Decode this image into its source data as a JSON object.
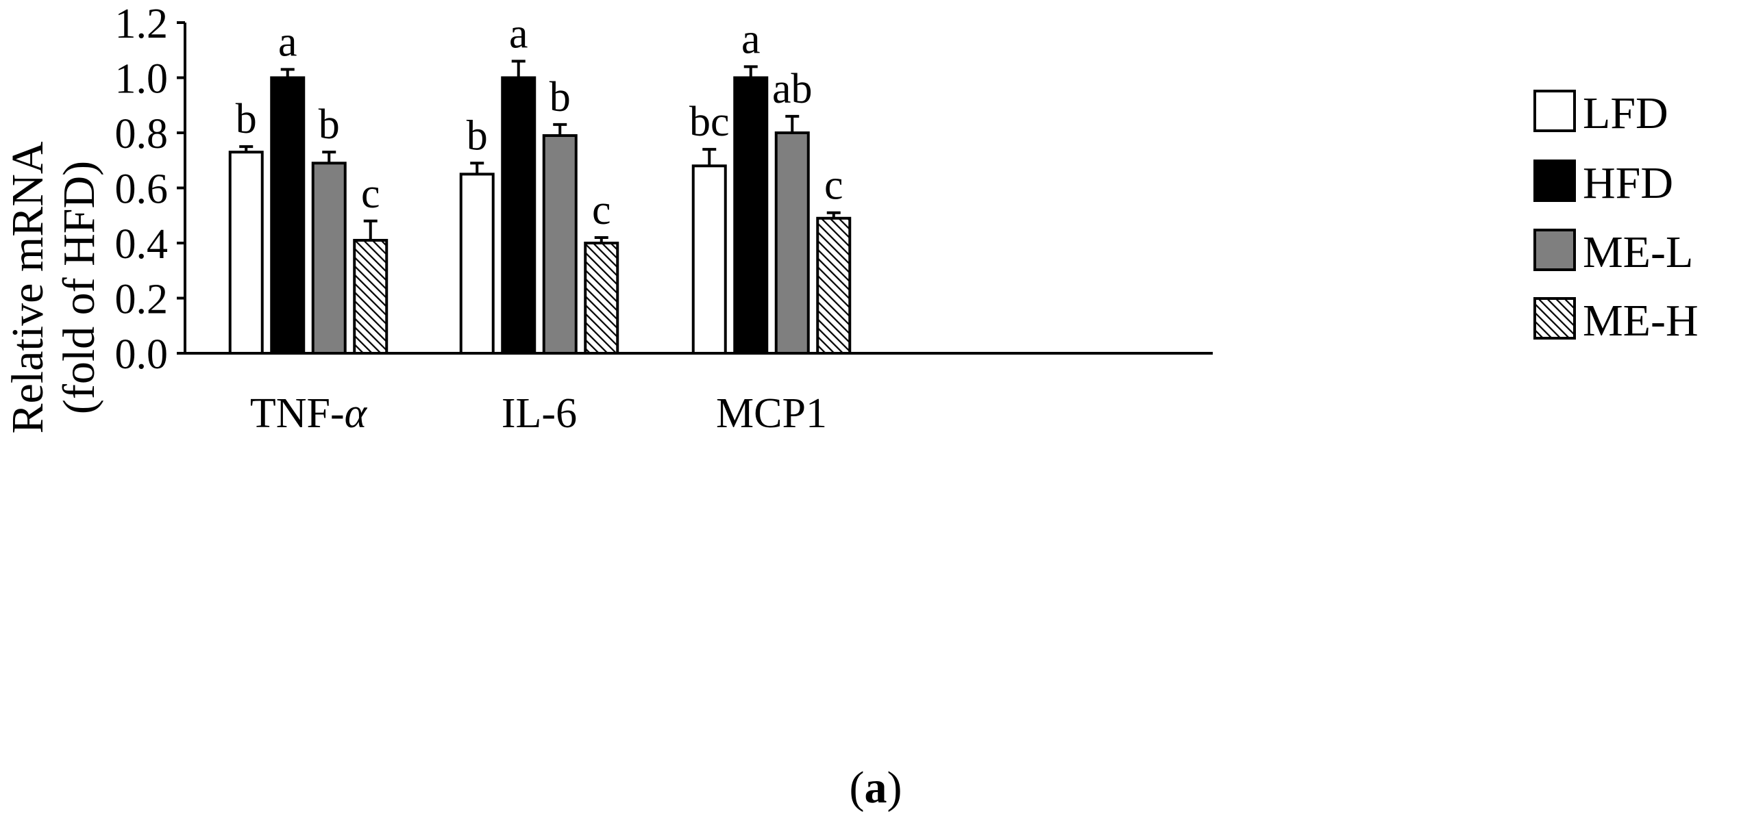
{
  "chart_data": {
    "type": "bar",
    "title": "",
    "xlabel": "",
    "ylabel_lines": [
      "Relative mRNA",
      "(fold of HFD)"
    ],
    "ylim": [
      0,
      1.2
    ],
    "y_ticks": [
      0.0,
      0.2,
      0.4,
      0.6,
      0.8,
      1.0,
      1.2
    ],
    "y_tick_labels": [
      "0.0",
      "0.2",
      "0.4",
      "0.6",
      "0.8",
      "1.0",
      "1.2"
    ],
    "categories": [
      "TNF-",
      "IL-6",
      "MCP1"
    ],
    "category_suffix": [
      "α",
      "",
      ""
    ],
    "series": [
      {
        "name": "LFD",
        "fill": "white",
        "values": [
          0.73,
          0.65,
          0.68
        ],
        "errors": [
          0.02,
          0.04,
          0.06
        ],
        "letters": [
          "b",
          "b",
          "bc"
        ]
      },
      {
        "name": "HFD",
        "fill": "black",
        "values": [
          1.0,
          1.0,
          1.0
        ],
        "errors": [
          0.03,
          0.06,
          0.04
        ],
        "letters": [
          "a",
          "a",
          "a"
        ]
      },
      {
        "name": "ME-L",
        "fill": "gray",
        "values": [
          0.69,
          0.79,
          0.8
        ],
        "errors": [
          0.04,
          0.04,
          0.06
        ],
        "letters": [
          "b",
          "b",
          "ab"
        ]
      },
      {
        "name": "ME-H",
        "fill": "hatched",
        "values": [
          0.41,
          0.4,
          0.49
        ],
        "errors": [
          0.07,
          0.02,
          0.02
        ],
        "letters": [
          "c",
          "c",
          "c"
        ]
      }
    ],
    "legend_position": "right",
    "panel_label_open": "(",
    "panel_label_letter": "a",
    "panel_label_close": ")"
  },
  "colors": {
    "white": "#ffffff",
    "black": "#000000",
    "gray": "#7f7f7f",
    "hatch_bg": "#ffffff",
    "hatch_line": "#000000"
  }
}
